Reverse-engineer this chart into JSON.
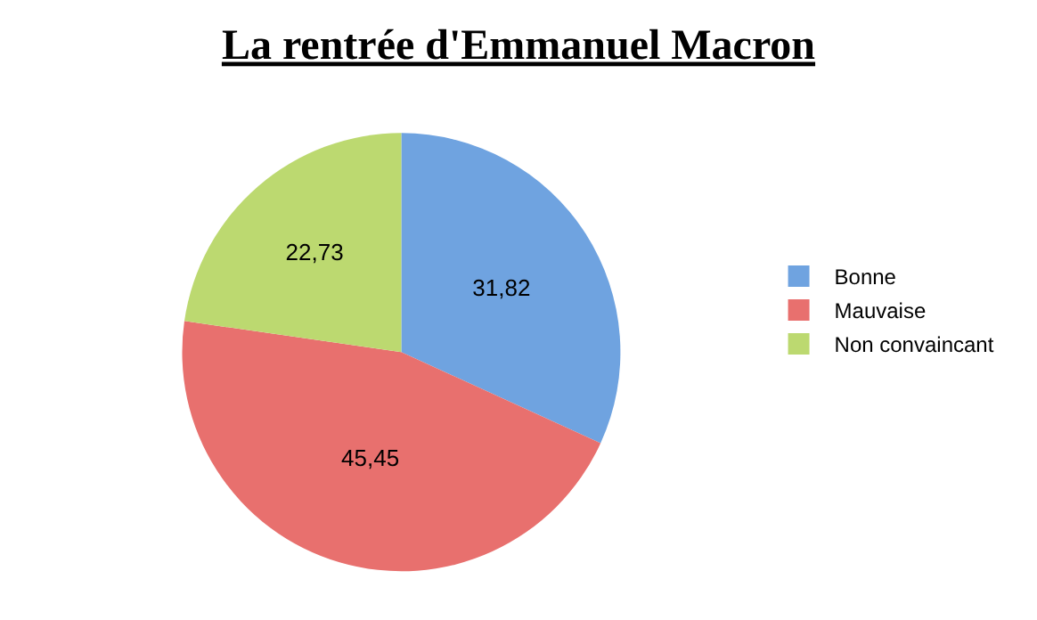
{
  "chart_data": {
    "type": "pie",
    "title": "La rentrée d'Emmanuel Macron",
    "categories": [
      "Bonne",
      "Mauvaise",
      "Non convaincant"
    ],
    "values": [
      31.82,
      45.45,
      22.73
    ],
    "value_labels": [
      "31,82",
      "45,45",
      "22,73"
    ],
    "colors": [
      "#6fa3e0",
      "#e8706e",
      "#bcd970"
    ],
    "legend": "right"
  }
}
